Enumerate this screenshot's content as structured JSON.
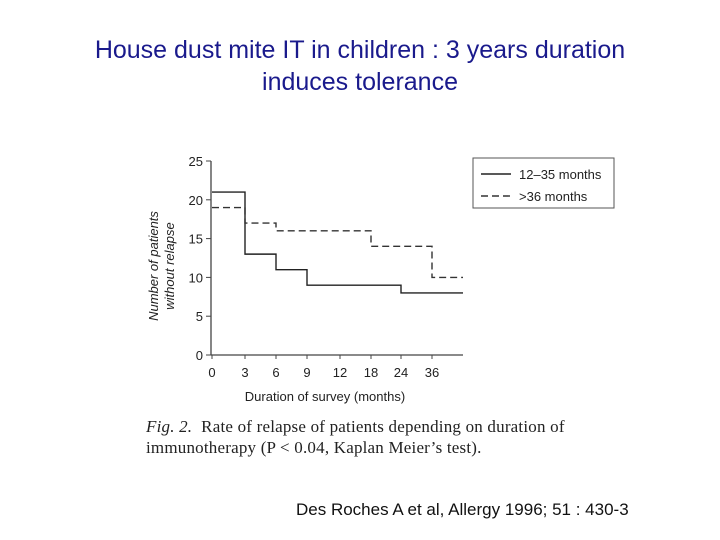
{
  "slide": {
    "title_line1": "House dust mite IT in children : 3 years duration",
    "title_line2": "induces tolerance",
    "caption_fig": "Fig. 2.",
    "caption_text1": "Rate of relapse of patients depending on duration of",
    "caption_text2": "immunotherapy (P < 0.04, Kaplan Meier’s test).",
    "citation": "Des Roches A et al, Allergy 1996; 51 : 430-3"
  },
  "chart_data": {
    "type": "line",
    "step": true,
    "xlabel": "Duration of survey (months)",
    "ylabel_line1": "Number of patients",
    "ylabel_line2": "without relapse",
    "y_ticks": [
      0,
      5,
      10,
      15,
      20,
      25
    ],
    "x_ticks": [
      "0",
      "3",
      "6",
      "9",
      "12",
      "18",
      "24",
      "36"
    ],
    "ylim": [
      0,
      25
    ],
    "legend_position": "top-right",
    "series": [
      {
        "name": "12–35 months",
        "style": "solid",
        "color": "#222222",
        "points": [
          [
            0,
            21
          ],
          [
            3,
            13
          ],
          [
            6,
            11
          ],
          [
            9,
            9
          ],
          [
            24,
            8
          ],
          [
            36,
            8
          ]
        ]
      },
      {
        "name": ">36 months",
        "style": "dashed",
        "color": "#333333",
        "points": [
          [
            0,
            19
          ],
          [
            3,
            17
          ],
          [
            6,
            16
          ],
          [
            12,
            16
          ],
          [
            18,
            14
          ],
          [
            24,
            14
          ],
          [
            36,
            10
          ]
        ]
      }
    ]
  }
}
